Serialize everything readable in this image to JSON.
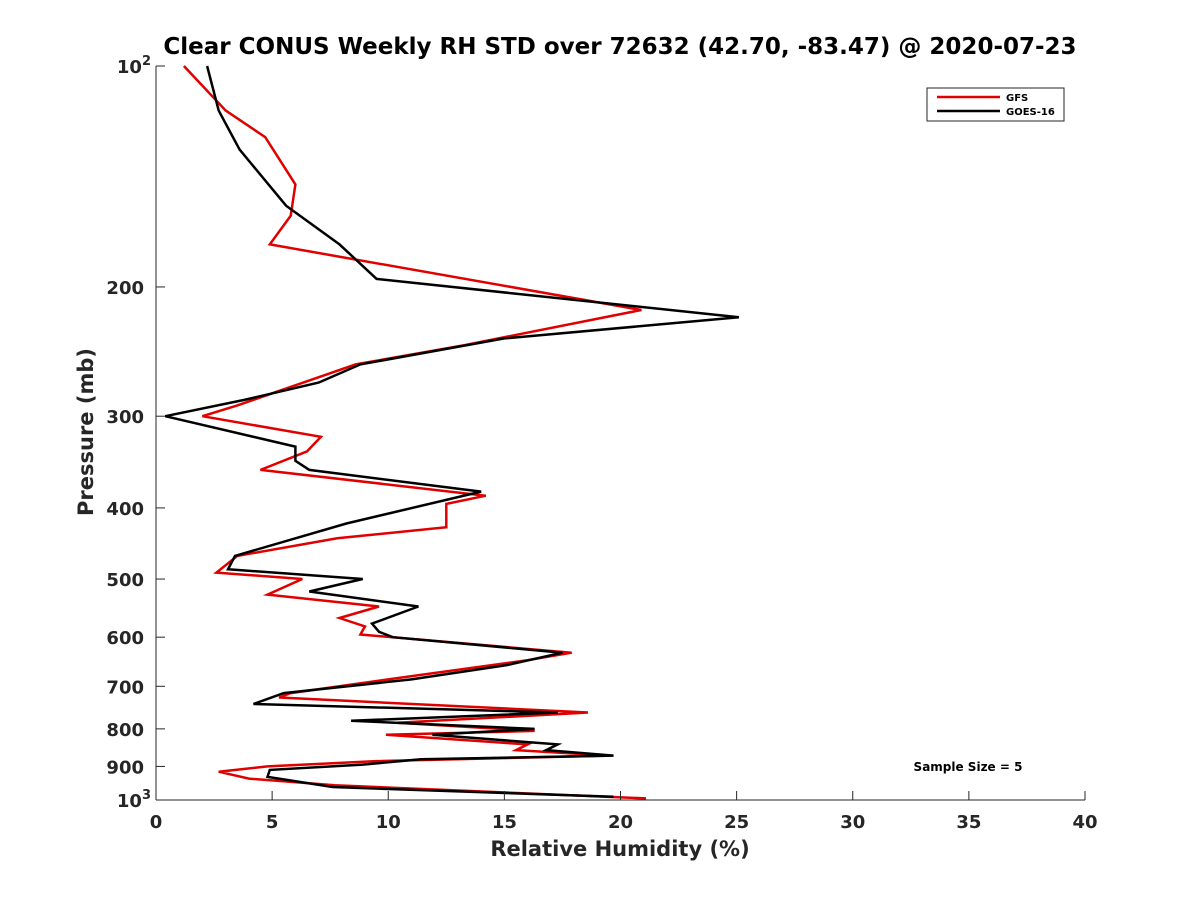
{
  "chart_data": {
    "type": "line",
    "title": "Clear CONUS Weekly RH STD over 72632 (42.70, -83.47) @ 2020-07-23",
    "xlabel": "Relative Humidity (%)",
    "ylabel": "Pressure (mb)",
    "xlim": [
      0,
      40
    ],
    "ylim": [
      100,
      1000
    ],
    "y_scale": "log",
    "y_reversed": true,
    "grid": false,
    "legend_position": "top-right",
    "annotation": "Sample Size = 5",
    "x_ticks": [
      "0",
      "5",
      "10",
      "15",
      "20",
      "25",
      "30",
      "35",
      "40"
    ],
    "y_ticks": [
      {
        "value": 100,
        "base": "10",
        "exp": "2"
      },
      {
        "value": 200,
        "base": "200",
        "exp": ""
      },
      {
        "value": 300,
        "base": "300",
        "exp": ""
      },
      {
        "value": 400,
        "base": "400",
        "exp": ""
      },
      {
        "value": 500,
        "base": "500",
        "exp": ""
      },
      {
        "value": 600,
        "base": "600",
        "exp": ""
      },
      {
        "value": 700,
        "base": "700",
        "exp": ""
      },
      {
        "value": 800,
        "base": "800",
        "exp": ""
      },
      {
        "value": 900,
        "base": "900",
        "exp": ""
      },
      {
        "value": 1000,
        "base": "10",
        "exp": "3"
      }
    ],
    "series": [
      {
        "name": "GFS",
        "color": "#e00000",
        "points": [
          [
            1.2,
            100
          ],
          [
            3.0,
            115
          ],
          [
            4.7,
            125
          ],
          [
            6.0,
            145
          ],
          [
            5.8,
            160
          ],
          [
            4.9,
            175
          ],
          [
            20.9,
            215
          ],
          [
            13.3,
            240
          ],
          [
            8.6,
            255
          ],
          [
            3.5,
            290
          ],
          [
            2.0,
            300
          ],
          [
            7.1,
            320
          ],
          [
            6.5,
            335
          ],
          [
            4.5,
            355
          ],
          [
            14.2,
            385
          ],
          [
            12.5,
            395
          ],
          [
            12.5,
            425
          ],
          [
            7.8,
            440
          ],
          [
            3.5,
            465
          ],
          [
            2.6,
            490
          ],
          [
            6.3,
            500
          ],
          [
            4.8,
            525
          ],
          [
            9.6,
            545
          ],
          [
            7.9,
            565
          ],
          [
            9.0,
            580
          ],
          [
            8.8,
            595
          ],
          [
            17.9,
            630
          ],
          [
            16.0,
            645
          ],
          [
            10.7,
            680
          ],
          [
            5.8,
            715
          ],
          [
            5.3,
            725
          ],
          [
            18.6,
            760
          ],
          [
            10.4,
            785
          ],
          [
            16.3,
            805
          ],
          [
            9.9,
            815
          ],
          [
            16.0,
            840
          ],
          [
            15.5,
            855
          ],
          [
            19.5,
            870
          ],
          [
            9.5,
            885
          ],
          [
            4.8,
            900
          ],
          [
            2.7,
            915
          ],
          [
            4.0,
            935
          ],
          [
            7.7,
            955
          ],
          [
            21.1,
            995
          ]
        ]
      },
      {
        "name": "GOES-16",
        "color": "#000000",
        "points": [
          [
            2.2,
            100
          ],
          [
            2.7,
            115
          ],
          [
            3.6,
            130
          ],
          [
            5.6,
            155
          ],
          [
            7.9,
            175
          ],
          [
            9.5,
            195
          ],
          [
            25.1,
            220
          ],
          [
            15.0,
            235
          ],
          [
            8.8,
            255
          ],
          [
            7.0,
            270
          ],
          [
            3.8,
            285
          ],
          [
            0.4,
            300
          ],
          [
            6.0,
            330
          ],
          [
            6.0,
            345
          ],
          [
            6.6,
            355
          ],
          [
            14.0,
            380
          ],
          [
            8.2,
            420
          ],
          [
            3.4,
            465
          ],
          [
            3.1,
            485
          ],
          [
            8.9,
            500
          ],
          [
            6.6,
            520
          ],
          [
            11.3,
            545
          ],
          [
            9.3,
            575
          ],
          [
            9.6,
            590
          ],
          [
            10.2,
            600
          ],
          [
            17.5,
            630
          ],
          [
            15.1,
            655
          ],
          [
            11.0,
            685
          ],
          [
            5.5,
            715
          ],
          [
            4.2,
            740
          ],
          [
            17.3,
            760
          ],
          [
            8.4,
            780
          ],
          [
            16.3,
            800
          ],
          [
            11.9,
            815
          ],
          [
            17.3,
            840
          ],
          [
            16.8,
            855
          ],
          [
            19.7,
            870
          ],
          [
            11.4,
            880
          ],
          [
            8.9,
            895
          ],
          [
            4.9,
            910
          ],
          [
            4.8,
            930
          ],
          [
            7.6,
            960
          ],
          [
            19.7,
            990
          ]
        ]
      }
    ]
  }
}
